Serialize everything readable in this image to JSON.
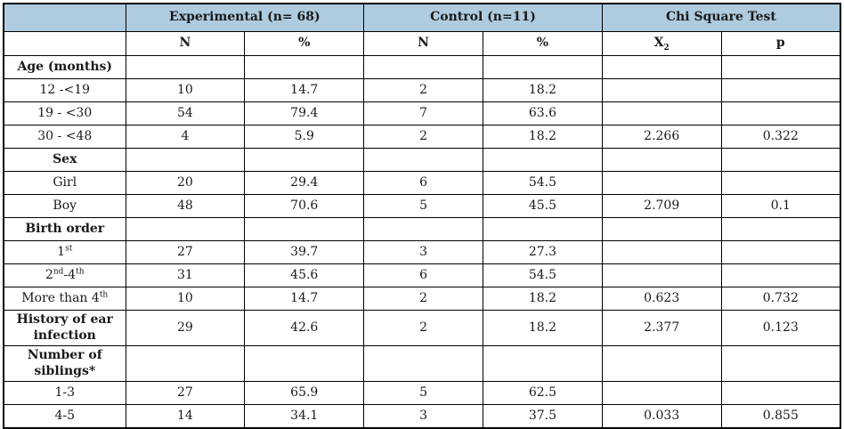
{
  "colors": {
    "header_bg": "#aecbdf",
    "border": "#000000",
    "text": "#1a1a1a"
  },
  "table": {
    "header": {
      "groups": [
        {
          "label": "",
          "span": 1
        },
        {
          "label": "Experimental (n= 68)",
          "span": 2
        },
        {
          "label": "Control (n=11)",
          "span": 2
        },
        {
          "label": "Chi Square Test",
          "span": 2
        }
      ],
      "sub_headers": [
        "",
        "N",
        "%",
        "N",
        "%",
        "X_{2}",
        "p"
      ]
    },
    "rows": [
      {
        "label": "Age (months)",
        "bold": true,
        "cells": [
          "",
          "",
          "",
          "",
          "",
          ""
        ]
      },
      {
        "label": "12 -<19",
        "bold": false,
        "cells": [
          "10",
          "14.7",
          "2",
          "18.2",
          "",
          ""
        ]
      },
      {
        "label": "19 - <30",
        "bold": false,
        "cells": [
          "54",
          "79.4",
          "7",
          "63.6",
          "",
          ""
        ]
      },
      {
        "label": "30 - <48",
        "bold": false,
        "cells": [
          "4",
          "5.9",
          "2",
          "18.2",
          "2.266",
          "0.322"
        ]
      },
      {
        "label": "Sex",
        "bold": true,
        "cells": [
          "",
          "",
          "",
          "",
          "",
          ""
        ]
      },
      {
        "label": "Girl",
        "bold": false,
        "cells": [
          "20",
          "29.4",
          "6",
          "54.5",
          "",
          ""
        ]
      },
      {
        "label": "Boy",
        "bold": false,
        "cells": [
          "48",
          "70.6",
          "5",
          "45.5",
          "2.709",
          "0.1"
        ]
      },
      {
        "label": "Birth order",
        "bold": true,
        "cells": [
          "",
          "",
          "",
          "",
          "",
          ""
        ]
      },
      {
        "label": "1^{st}",
        "bold": false,
        "cells": [
          "27",
          "39.7",
          "3",
          "27.3",
          "",
          ""
        ]
      },
      {
        "label": "2^{nd}-4^{th}",
        "bold": false,
        "cells": [
          "31",
          "45.6",
          "6",
          "54.5",
          "",
          ""
        ]
      },
      {
        "label": "More than 4^{th}",
        "bold": false,
        "cells": [
          "10",
          "14.7",
          "2",
          "18.2",
          "0.623",
          "0.732"
        ]
      },
      {
        "label": "History of ear infection",
        "bold": true,
        "cells": [
          "29",
          "42.6",
          "2",
          "18.2",
          "2.377",
          "0.123"
        ]
      },
      {
        "label": "Number of siblings*",
        "bold": true,
        "cells": [
          "",
          "",
          "",
          "",
          "",
          ""
        ]
      },
      {
        "label": "1-3",
        "bold": false,
        "cells": [
          "27",
          "65.9",
          "5",
          "62.5",
          "",
          ""
        ]
      },
      {
        "label": "4-5",
        "bold": false,
        "cells": [
          "14",
          "34.1",
          "3",
          "37.5",
          "0.033",
          "0.855"
        ]
      }
    ]
  }
}
